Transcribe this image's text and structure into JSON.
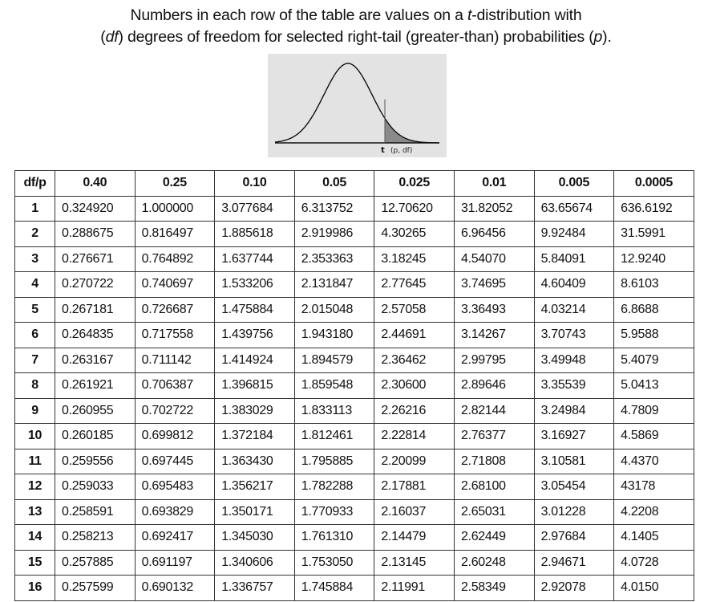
{
  "caption": {
    "line1_before": "Numbers in each row of the table are values on a ",
    "line1_t": "t",
    "line1_after": "-distribution with",
    "line2_open": "(",
    "line2_df": "df",
    "line2_middle": ") degrees of freedom for selected right-tail (greater-than) probabilities (",
    "line2_p": "p",
    "line2_close": ")."
  },
  "figure": {
    "label_t": "t",
    "label_params": "(p, df)",
    "curve_color": "#111111",
    "shade_color": "#8a8a8a",
    "background_color": "#e3e3e3"
  },
  "table": {
    "headers": [
      "df/p",
      "0.40",
      "0.25",
      "0.10",
      "0.05",
      "0.025",
      "0.01",
      "0.005",
      "0.0005"
    ],
    "rows": [
      [
        "1",
        "0.324920",
        "1.000000",
        "3.077684",
        "6.313752",
        "12.70620",
        "31.82052",
        "63.65674",
        "636.6192"
      ],
      [
        "2",
        "0.288675",
        "0.816497",
        "1.885618",
        "2.919986",
        "4.30265",
        "6.96456",
        "9.92484",
        "31.5991"
      ],
      [
        "3",
        "0.276671",
        "0.764892",
        "1.637744",
        "2.353363",
        "3.18245",
        "4.54070",
        "5.84091",
        "12.9240"
      ],
      [
        "4",
        "0.270722",
        "0.740697",
        "1.533206",
        "2.131847",
        "2.77645",
        "3.74695",
        "4.60409",
        "8.6103"
      ],
      [
        "5",
        "0.267181",
        "0.726687",
        "1.475884",
        "2.015048",
        "2.57058",
        "3.36493",
        "4.03214",
        "6.8688"
      ],
      [
        "6",
        "0.264835",
        "0.717558",
        "1.439756",
        "1.943180",
        "2.44691",
        "3.14267",
        "3.70743",
        "5.9588"
      ],
      [
        "7",
        "0.263167",
        "0.711142",
        "1.414924",
        "1.894579",
        "2.36462",
        "2.99795",
        "3.49948",
        "5.4079"
      ],
      [
        "8",
        "0.261921",
        "0.706387",
        "1.396815",
        "1.859548",
        "2.30600",
        "2.89646",
        "3.35539",
        "5.0413"
      ],
      [
        "9",
        "0.260955",
        "0.702722",
        "1.383029",
        "1.833113",
        "2.26216",
        "2.82144",
        "3.24984",
        "4.7809"
      ],
      [
        "10",
        "0.260185",
        "0.699812",
        "1.372184",
        "1.812461",
        "2.22814",
        "2.76377",
        "3.16927",
        "4.5869"
      ],
      [
        "11",
        "0.259556",
        "0.697445",
        "1.363430",
        "1.795885",
        "2.20099",
        "2.71808",
        "3.10581",
        "4.4370"
      ],
      [
        "12",
        "0.259033",
        "0.695483",
        "1.356217",
        "1.782288",
        "2.17881",
        "2.68100",
        "3.05454",
        "43178"
      ],
      [
        "13",
        "0.258591",
        "0.693829",
        "1.350171",
        "1.770933",
        "2.16037",
        "2.65031",
        "3.01228",
        "4.2208"
      ],
      [
        "14",
        "0.258213",
        "0.692417",
        "1.345030",
        "1.761310",
        "2.14479",
        "2.62449",
        "2.97684",
        "4.1405"
      ],
      [
        "15",
        "0.257885",
        "0.691197",
        "1.340606",
        "1.753050",
        "2.13145",
        "2.60248",
        "2.94671",
        "4.0728"
      ],
      [
        "16",
        "0.257599",
        "0.690132",
        "1.336757",
        "1.745884",
        "2.11991",
        "2.58349",
        "2.92078",
        "4.0150"
      ]
    ]
  }
}
